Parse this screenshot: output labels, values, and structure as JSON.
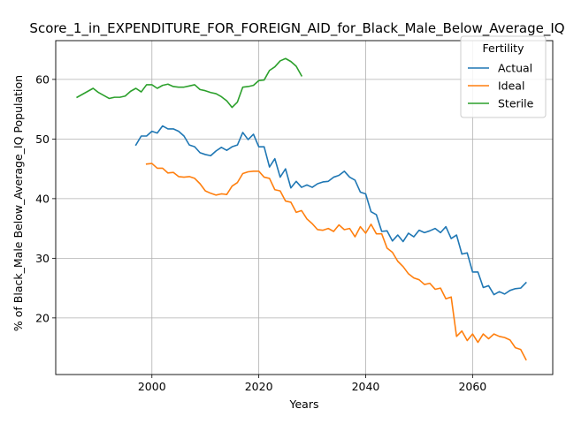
{
  "chart_data": {
    "type": "line",
    "title": "Score_1_in_EXPENDITURE_FOR_FOREIGN_AID_for_Black_Male_Below_Average_IQ",
    "xlabel": "Years",
    "ylabel": "% of Black_Male Below_Average_IQ Population",
    "xlim": [
      1982,
      2075
    ],
    "ylim": [
      10.5,
      66.5
    ],
    "xticks": [
      2000,
      2020,
      2040,
      2060
    ],
    "yticks": [
      20,
      30,
      40,
      50,
      60
    ],
    "grid": true,
    "legend": {
      "title": "Fertility",
      "placement": "top-right"
    },
    "series": [
      {
        "name": "Actual",
        "color": "#1f77b4",
        "x": [
          1997,
          1998,
          1999,
          2000,
          2001,
          2002,
          2003,
          2004,
          2005,
          2006,
          2007,
          2008,
          2009,
          2010,
          2011,
          2012,
          2013,
          2014,
          2015,
          2016,
          2017,
          2018,
          2019,
          2020,
          2021,
          2022,
          2023,
          2024,
          2025,
          2026,
          2027,
          2028,
          2029,
          2030,
          2031,
          2032,
          2033,
          2034,
          2035,
          2036,
          2037,
          2038,
          2039,
          2040,
          2041,
          2042,
          2043,
          2044,
          2045,
          2046,
          2047,
          2048,
          2049,
          2050,
          2051,
          2052,
          2053,
          2054,
          2055,
          2056,
          2057,
          2058,
          2059,
          2060,
          2061,
          2062,
          2063,
          2064,
          2065,
          2066,
          2067,
          2068,
          2069,
          2070
        ],
        "values": [
          49.0,
          50.5,
          50.5,
          51.3,
          51.0,
          52.2,
          51.7,
          51.7,
          51.3,
          50.5,
          49.0,
          48.7,
          47.7,
          47.4,
          47.2,
          48.0,
          48.6,
          48.1,
          48.7,
          49.0,
          51.1,
          49.9,
          50.8,
          48.7,
          48.7,
          45.3,
          46.7,
          43.6,
          45.0,
          41.8,
          42.9,
          41.9,
          42.3,
          41.9,
          42.5,
          42.8,
          42.9,
          43.6,
          43.9,
          44.6,
          43.6,
          43.1,
          41.1,
          40.8,
          37.8,
          37.3,
          34.5,
          34.6,
          32.9,
          33.9,
          32.8,
          34.2,
          33.6,
          34.7,
          34.3,
          34.6,
          35.0,
          34.3,
          35.3,
          33.3,
          33.9,
          30.7,
          30.9,
          27.7,
          27.7,
          25.1,
          25.4,
          23.9,
          24.4,
          24.0,
          24.6,
          24.9,
          25.0,
          25.9
        ]
      },
      {
        "name": "Ideal",
        "color": "#ff7f0e",
        "x": [
          1999,
          2000,
          2001,
          2002,
          2003,
          2004,
          2005,
          2006,
          2007,
          2008,
          2009,
          2010,
          2011,
          2012,
          2013,
          2014,
          2015,
          2016,
          2017,
          2018,
          2019,
          2020,
          2021,
          2022,
          2023,
          2024,
          2025,
          2026,
          2027,
          2028,
          2029,
          2030,
          2031,
          2032,
          2033,
          2034,
          2035,
          2036,
          2037,
          2038,
          2039,
          2040,
          2041,
          2042,
          2043,
          2044,
          2045,
          2046,
          2047,
          2048,
          2049,
          2050,
          2051,
          2052,
          2053,
          2054,
          2055,
          2056,
          2057,
          2058,
          2059,
          2060,
          2061,
          2062,
          2063,
          2064,
          2065,
          2066,
          2067,
          2068,
          2069,
          2070
        ],
        "values": [
          45.8,
          45.9,
          45.1,
          45.1,
          44.3,
          44.4,
          43.7,
          43.6,
          43.7,
          43.4,
          42.5,
          41.3,
          40.9,
          40.6,
          40.8,
          40.7,
          42.1,
          42.7,
          44.2,
          44.5,
          44.6,
          44.6,
          43.6,
          43.4,
          41.5,
          41.3,
          39.6,
          39.4,
          37.7,
          38.0,
          36.6,
          35.8,
          34.8,
          34.7,
          35.0,
          34.5,
          35.6,
          34.8,
          35.0,
          33.6,
          35.3,
          34.2,
          35.7,
          34.1,
          34.1,
          31.7,
          31.0,
          29.5,
          28.6,
          27.4,
          26.7,
          26.4,
          25.6,
          25.8,
          24.8,
          25.0,
          23.2,
          23.5,
          16.9,
          17.8,
          16.2,
          17.3,
          15.9,
          17.3,
          16.5,
          17.3,
          16.9,
          16.7,
          16.3,
          15.0,
          14.7,
          13.0
        ]
      },
      {
        "name": "Sterile",
        "color": "#2ca02c",
        "x": [
          1986,
          1987,
          1988,
          1989,
          1990,
          1991,
          1992,
          1993,
          1994,
          1995,
          1996,
          1997,
          1998,
          1999,
          2000,
          2001,
          2002,
          2003,
          2004,
          2005,
          2006,
          2007,
          2008,
          2009,
          2010,
          2011,
          2012,
          2013,
          2014,
          2015,
          2016,
          2017,
          2018,
          2019,
          2020,
          2021,
          2022,
          2023,
          2024,
          2025,
          2026,
          2027,
          2028
        ],
        "values": [
          57.0,
          57.5,
          58.0,
          58.5,
          57.8,
          57.3,
          56.8,
          57.0,
          57.0,
          57.2,
          58.0,
          58.5,
          57.9,
          59.1,
          59.1,
          58.5,
          59.0,
          59.2,
          58.8,
          58.7,
          58.7,
          58.9,
          59.1,
          58.3,
          58.1,
          57.8,
          57.6,
          57.1,
          56.4,
          55.3,
          56.2,
          58.7,
          58.8,
          59.0,
          59.8,
          59.9,
          61.5,
          62.1,
          63.1,
          63.5,
          63.0,
          62.2,
          60.6
        ]
      }
    ]
  }
}
